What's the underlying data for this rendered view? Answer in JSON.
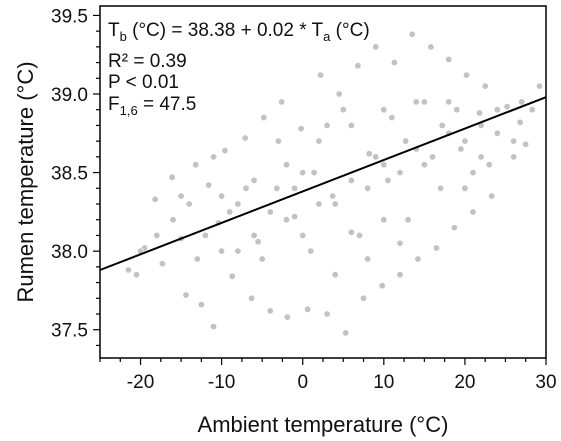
{
  "chart_data": {
    "type": "scatter",
    "title": "",
    "xlabel": "Ambient temperature (°C)",
    "ylabel": "Rumen temperature (°C)",
    "xlim": [
      -25,
      30
    ],
    "ylim": [
      37.32,
      39.56
    ],
    "x_ticks": [
      -20,
      -10,
      0,
      10,
      20,
      30
    ],
    "x_tick_labels": [
      "-20",
      "-10",
      "0",
      "10",
      "20",
      "30"
    ],
    "y_ticks": [
      37.5,
      38.0,
      38.5,
      39.0,
      39.5
    ],
    "y_tick_labels": [
      "37.5",
      "38.0",
      "38.5",
      "39.0",
      "39.5"
    ],
    "grid": false,
    "legend": "none",
    "colors": {
      "points": "#c2c2c2",
      "fit_line": "#000000",
      "axis": "#000000"
    },
    "fit_line": {
      "intercept": 38.38,
      "slope": 0.02,
      "x_range": [
        -25,
        30
      ]
    },
    "annotations": {
      "equation": {
        "tb": "T",
        "tb_sub": "b",
        "tb_unit": " (°C) = 38.38 + 0.02 * T",
        "ta_sub": "a",
        "ta_unit": " (°C)"
      },
      "r2": "R² = 0.39",
      "p": "P < 0.01",
      "f": {
        "label": "F",
        "sub": "1,6",
        "value": " = 47.5"
      }
    },
    "series": [
      {
        "values_note": "",
        "points": [
          [
            -21.5,
            37.88
          ],
          [
            -20.5,
            37.85
          ],
          [
            -19.5,
            38.02
          ],
          [
            -18.2,
            38.33
          ],
          [
            -17.3,
            37.92
          ],
          [
            -16.1,
            38.47
          ],
          [
            -15.0,
            38.08
          ],
          [
            -14.4,
            37.72
          ],
          [
            -13.2,
            38.55
          ],
          [
            -12.5,
            37.66
          ],
          [
            -11.6,
            38.42
          ],
          [
            -11.0,
            37.52
          ],
          [
            -10.4,
            38.18
          ],
          [
            -9.6,
            38.64
          ],
          [
            -8.7,
            37.84
          ],
          [
            -8.0,
            38.3
          ],
          [
            -7.1,
            38.72
          ],
          [
            -6.3,
            37.7
          ],
          [
            -5.5,
            38.06
          ],
          [
            -4.8,
            38.85
          ],
          [
            -4.0,
            37.62
          ],
          [
            -3.2,
            38.4
          ],
          [
            -2.6,
            38.95
          ],
          [
            -1.9,
            37.58
          ],
          [
            -1.0,
            38.22
          ],
          [
            -0.2,
            38.78
          ],
          [
            0.6,
            37.63
          ],
          [
            1.4,
            38.5
          ],
          [
            2.2,
            39.12
          ],
          [
            3.0,
            37.6
          ],
          [
            3.7,
            38.35
          ],
          [
            4.5,
            39.0
          ],
          [
            5.3,
            37.48
          ],
          [
            6.0,
            38.12
          ],
          [
            6.8,
            39.18
          ],
          [
            7.5,
            37.7
          ],
          [
            8.2,
            38.62
          ],
          [
            9.0,
            39.3
          ],
          [
            9.8,
            37.78
          ],
          [
            10.5,
            38.45
          ],
          [
            11.3,
            39.2
          ],
          [
            12.0,
            37.85
          ],
          [
            12.7,
            38.7
          ],
          [
            13.5,
            39.38
          ],
          [
            14.2,
            37.95
          ],
          [
            15.0,
            38.55
          ],
          [
            15.8,
            39.3
          ],
          [
            16.5,
            38.02
          ],
          [
            17.2,
            38.8
          ],
          [
            18.0,
            39.22
          ],
          [
            18.7,
            38.15
          ],
          [
            19.5,
            38.65
          ],
          [
            20.2,
            39.12
          ],
          [
            21.0,
            38.25
          ],
          [
            21.8,
            38.88
          ],
          [
            22.5,
            39.05
          ],
          [
            23.3,
            38.35
          ],
          [
            24.0,
            38.75
          ],
          [
            25.2,
            38.92
          ],
          [
            26.0,
            38.6
          ],
          [
            26.8,
            38.82
          ],
          [
            27.5,
            38.68
          ],
          [
            28.3,
            38.9
          ],
          [
            29.2,
            39.05
          ],
          [
            -16.0,
            38.2
          ],
          [
            -14.0,
            38.3
          ],
          [
            -12.0,
            38.1
          ],
          [
            -10.0,
            38.35
          ],
          [
            -8.0,
            38.0
          ],
          [
            -6.0,
            38.45
          ],
          [
            -4.0,
            38.25
          ],
          [
            -2.0,
            38.55
          ],
          [
            0.0,
            38.1
          ],
          [
            2.0,
            38.7
          ],
          [
            4.0,
            38.3
          ],
          [
            6.0,
            38.8
          ],
          [
            8.0,
            38.4
          ],
          [
            10.0,
            38.9
          ],
          [
            12.0,
            38.5
          ],
          [
            14.0,
            38.95
          ],
          [
            16.0,
            38.6
          ],
          [
            18.0,
            38.95
          ],
          [
            20.0,
            38.7
          ],
          [
            22.0,
            38.6
          ],
          [
            -6.0,
            38.1
          ],
          [
            -2.0,
            38.2
          ],
          [
            2.0,
            38.3
          ],
          [
            6.0,
            38.45
          ],
          [
            10.0,
            38.55
          ],
          [
            14.0,
            38.65
          ],
          [
            18.0,
            38.75
          ],
          [
            22.0,
            38.8
          ],
          [
            -10.0,
            38.0
          ],
          [
            0.0,
            38.5
          ],
          [
            10.0,
            38.2
          ],
          [
            20.0,
            38.4
          ],
          [
            -18.0,
            38.1
          ],
          [
            -20.0,
            38.0
          ],
          [
            24.0,
            38.9
          ],
          [
            26.0,
            38.7
          ],
          [
            27.0,
            38.95
          ],
          [
            5.0,
            38.9
          ],
          [
            7.0,
            38.1
          ],
          [
            3.0,
            38.8
          ],
          [
            -3.0,
            38.7
          ],
          [
            -7.0,
            38.4
          ],
          [
            -11.0,
            38.6
          ],
          [
            -13.0,
            37.95
          ],
          [
            -15.0,
            38.35
          ],
          [
            11.0,
            38.85
          ],
          [
            13.0,
            38.2
          ],
          [
            15.0,
            38.95
          ],
          [
            17.0,
            38.4
          ],
          [
            19.0,
            38.9
          ],
          [
            21.0,
            38.5
          ],
          [
            23.0,
            38.55
          ],
          [
            9.0,
            38.6
          ],
          [
            1.0,
            38.0
          ],
          [
            -1.0,
            38.4
          ],
          [
            -5.0,
            37.95
          ],
          [
            -9.0,
            38.25
          ],
          [
            4.0,
            37.85
          ],
          [
            8.0,
            37.95
          ],
          [
            12.0,
            38.05
          ]
        ]
      }
    ]
  }
}
